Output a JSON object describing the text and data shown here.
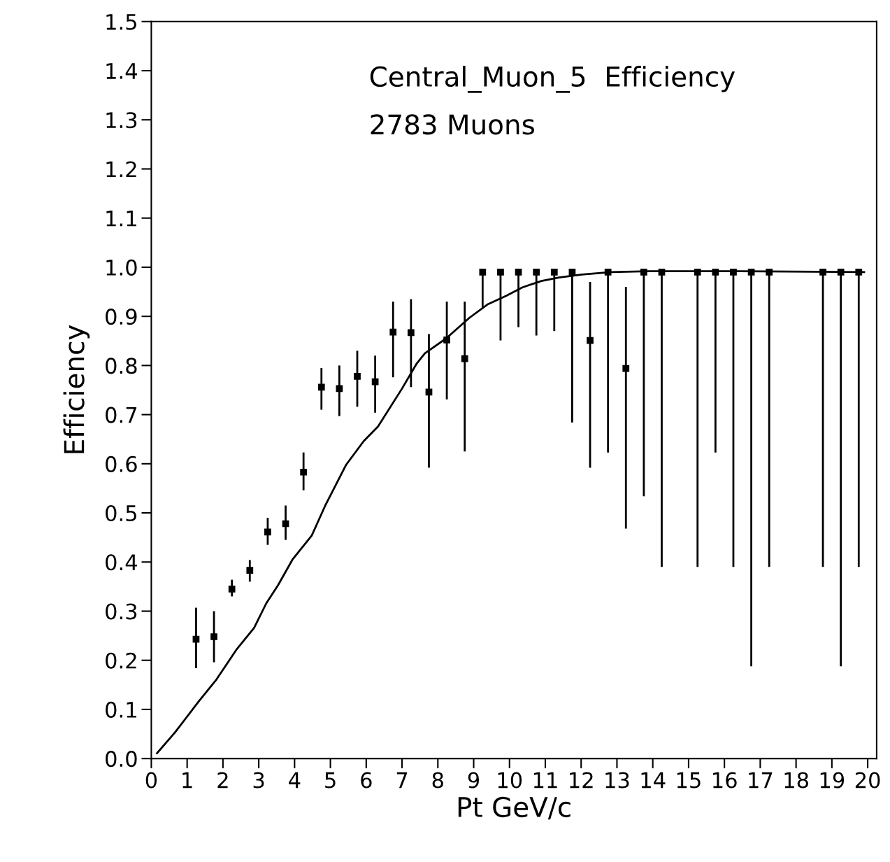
{
  "chart_data": {
    "type": "scatter",
    "title": "Central_Muon_5  Efficiency",
    "subtitle": "2783 Muons",
    "xlabel": "Pt GeV/c",
    "ylabel": "Efficiency",
    "xlim": [
      0,
      20.25
    ],
    "ylim": [
      0,
      1.5
    ],
    "xticks": [
      0,
      1,
      2,
      3,
      4,
      5,
      6,
      7,
      8,
      9,
      10,
      11,
      12,
      13,
      14,
      15,
      16,
      17,
      18,
      19,
      20
    ],
    "yticks": [
      {
        "value": 0,
        "label": "0.0"
      },
      0.1,
      0.2,
      0.3,
      0.4,
      0.5,
      0.6,
      0.7,
      0.8,
      0.9,
      {
        "value": 1,
        "label": "1.0"
      },
      1.1,
      1.2,
      1.3,
      1.4,
      1.5
    ],
    "grid": false,
    "legend": false,
    "series": [
      {
        "color": "#000000",
        "marker": "square",
        "x": [
          1.25,
          1.75,
          2.25,
          2.75,
          3.25,
          3.75,
          4.25,
          4.75,
          5.25,
          5.75,
          6.25,
          6.75,
          7.25,
          7.75,
          8.25,
          8.75,
          9.25,
          9.75,
          10.25,
          10.75,
          11.25,
          11.75,
          12.25,
          12.75,
          13.25,
          13.75,
          14.25,
          15.25,
          15.75,
          16.25,
          16.75,
          17.25,
          18.75,
          19.25,
          19.75
        ],
        "values": [
          0.243,
          0.248,
          0.345,
          0.383,
          0.461,
          0.478,
          0.583,
          0.756,
          0.753,
          0.778,
          0.767,
          0.868,
          0.867,
          0.746,
          0.852,
          0.814,
          0.99,
          0.99,
          0.99,
          0.99,
          0.99,
          0.99,
          0.851,
          0.99,
          0.794,
          0.99,
          0.99,
          0.99,
          0.99,
          0.99,
          0.99,
          0.99,
          0.99,
          0.99,
          0.99
        ],
        "errors": [
          [
            0.184,
            0.307
          ],
          [
            0.196,
            0.3
          ],
          [
            0.33,
            0.364
          ],
          [
            0.36,
            0.404
          ],
          [
            0.435,
            0.49
          ],
          [
            0.445,
            0.515
          ],
          [
            0.546,
            0.623
          ],
          [
            0.71,
            0.795
          ],
          [
            0.697,
            0.8
          ],
          [
            0.716,
            0.83
          ],
          [
            0.704,
            0.82
          ],
          [
            0.776,
            0.93
          ],
          [
            0.756,
            0.935
          ],
          [
            0.592,
            0.864
          ],
          [
            0.731,
            0.93
          ],
          [
            0.625,
            0.93
          ],
          [
            0.916,
            0.99
          ],
          [
            0.851,
            0.99
          ],
          [
            0.878,
            0.99
          ],
          [
            0.861,
            0.99
          ],
          [
            0.87,
            0.99
          ],
          [
            0.684,
            0.99
          ],
          [
            0.592,
            0.97
          ],
          [
            0.623,
            0.99
          ],
          [
            0.468,
            0.96
          ],
          [
            0.534,
            0.99
          ],
          [
            0.39,
            0.99
          ],
          [
            0.39,
            0.99
          ],
          [
            0.623,
            0.99
          ],
          [
            0.39,
            0.99
          ],
          [
            0.188,
            0.99
          ],
          [
            0.39,
            0.99
          ],
          [
            0.39,
            0.99
          ],
          [
            0.188,
            0.99
          ],
          [
            0.39,
            0.99
          ]
        ]
      },
      {
        "type": "line",
        "color": "#000000",
        "marker": "none",
        "line_style": "solid",
        "x": [
          0.16,
          0.66,
          1.31,
          1.82,
          2.39,
          2.87,
          3.21,
          3.54,
          3.95,
          4.48,
          4.85,
          5.44,
          5.93,
          6.33,
          7.0,
          7.41,
          7.64,
          8.23,
          8.88,
          9.38,
          9.91,
          10.36,
          10.89,
          11.38,
          12.02,
          12.84,
          13.9,
          16.4,
          19.9
        ],
        "values": [
          0.011,
          0.053,
          0.115,
          0.161,
          0.223,
          0.266,
          0.316,
          0.353,
          0.406,
          0.454,
          0.514,
          0.598,
          0.646,
          0.676,
          0.753,
          0.804,
          0.825,
          0.855,
          0.897,
          0.924,
          0.942,
          0.959,
          0.972,
          0.979,
          0.985,
          0.99,
          0.992,
          0.992,
          0.99
        ]
      }
    ]
  }
}
